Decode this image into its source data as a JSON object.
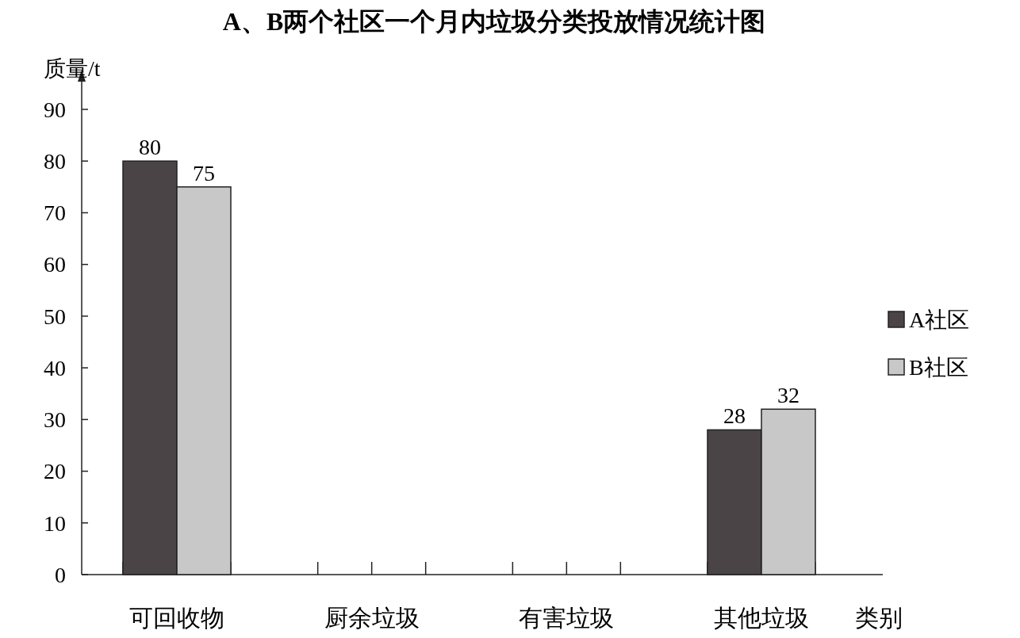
{
  "chart_data": {
    "type": "bar",
    "title": "A、B两个社区一个月内垃圾分类投放情况统计图",
    "xlabel": "类别",
    "ylabel": "质量/t",
    "categories": [
      "可回收物",
      "厨余垃圾",
      "有害垃圾",
      "其他垃圾"
    ],
    "series": [
      {
        "name": "A社区",
        "color": "#4a4446",
        "values": [
          80,
          null,
          null,
          28
        ]
      },
      {
        "name": "B社区",
        "color": "#c8c8c8",
        "values": [
          75,
          null,
          null,
          32
        ]
      }
    ],
    "ylim": [
      0,
      90
    ],
    "yticks": [
      0,
      10,
      20,
      30,
      40,
      50,
      60,
      70,
      80,
      90
    ],
    "data_labels": true,
    "legend": "right",
    "grid": false
  }
}
